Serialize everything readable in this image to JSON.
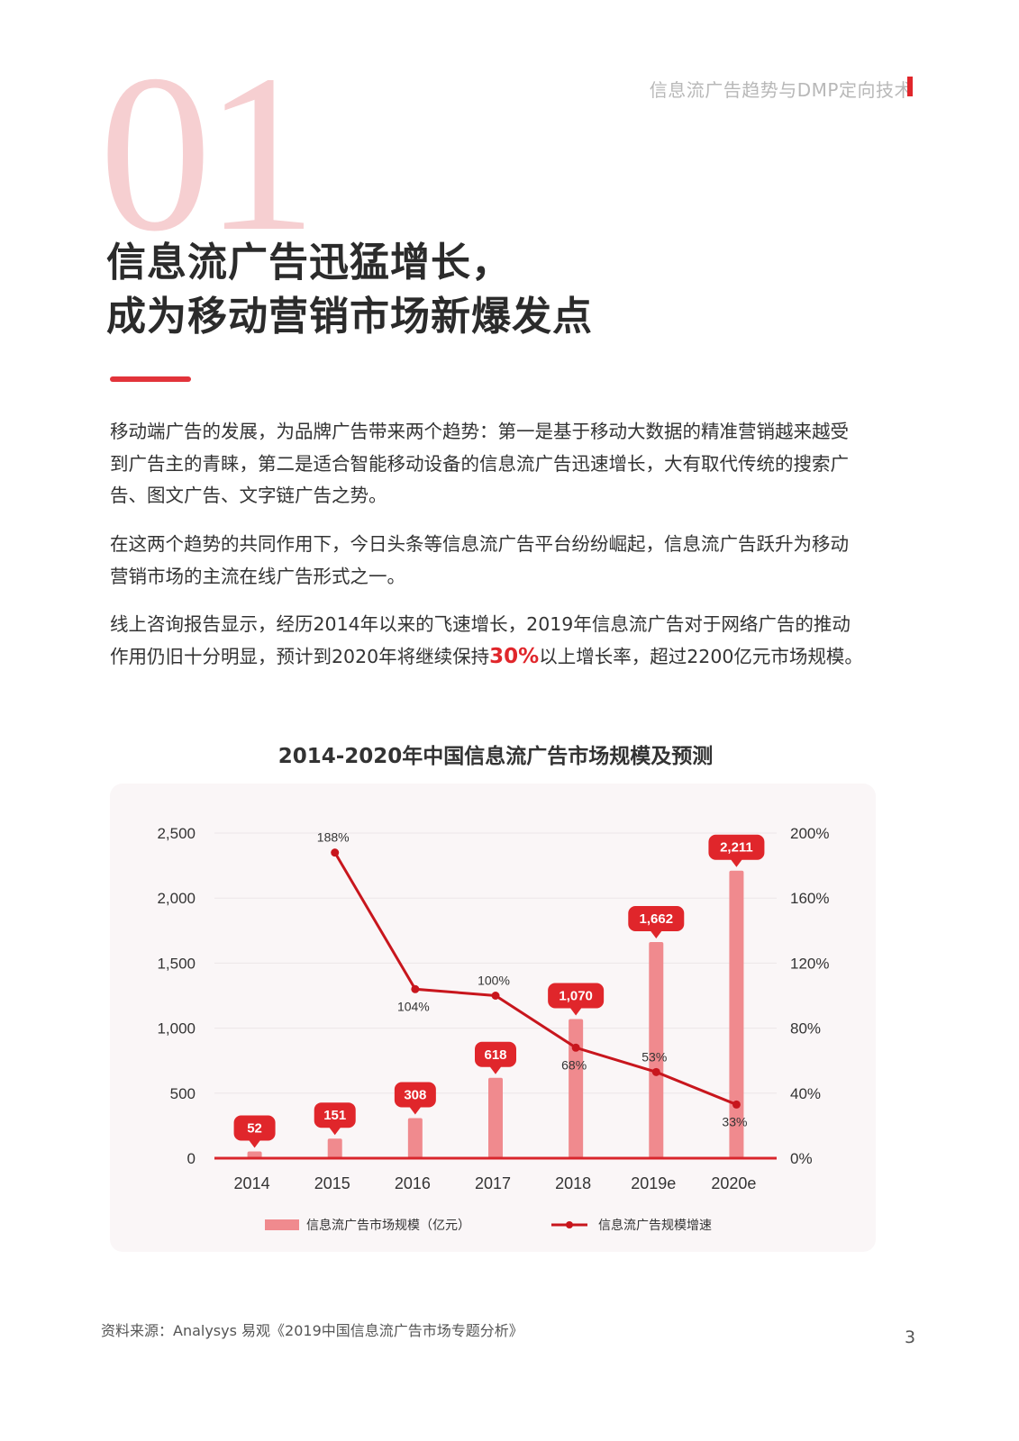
{
  "header": {
    "running_title": "信息流广告趋势与DMP定向技术"
  },
  "section": {
    "number": "01",
    "title_line1": "信息流广告迅猛增长，",
    "title_line2": "成为移动营销市场新爆发点"
  },
  "body": {
    "p1": "移动端广告的发展，为品牌广告带来两个趋势：第一是基于移动大数据的精准营销越来越受到广告主的青睐，第二是适合智能移动设备的信息流广告迅速增长，大有取代传统的搜索广告、图文广告、文字链广告之势。",
    "p2": "在这两个趋势的共同作用下，今日头条等信息流广告平台纷纷崛起，信息流广告跃升为移动营销市场的主流在线广告形式之一。",
    "p3_before": "线上咨询报告显示，经历2014年以来的飞速增长，2019年信息流广告对于网络广告的推动作用仍旧十分明显，预计到2020年将继续保持",
    "p3_highlight": "30%",
    "p3_after": "以上增长率，超过2200亿元市场规模。"
  },
  "chart_data": {
    "type": "bar+line",
    "title": "2014-2020年中国信息流广告市场规模及预测",
    "categories": [
      "2014",
      "2015",
      "2016",
      "2017",
      "2018",
      "2019e",
      "2020e"
    ],
    "series": [
      {
        "name": "信息流广告市场规模（亿元）",
        "type": "bar",
        "axis": "left",
        "values": [
          52,
          151,
          308,
          618,
          1070,
          1662,
          2211
        ],
        "labels": [
          "52",
          "151",
          "308",
          "618",
          "1,070",
          "1,662",
          "2,211"
        ],
        "color": "#f08a8e"
      },
      {
        "name": "信息流广告规模增速",
        "type": "line",
        "axis": "right",
        "values": [
          null,
          188,
          104,
          100,
          68,
          53,
          33
        ],
        "labels": [
          "",
          "188%",
          "104%",
          "100%",
          "68%",
          "53%",
          "33%"
        ],
        "color": "#c8161d"
      }
    ],
    "left_axis": {
      "ylim": [
        0,
        2500
      ],
      "ticks": [
        "0",
        "500",
        "1,000",
        "1,500",
        "2,000",
        "2,500"
      ]
    },
    "right_axis": {
      "ylim": [
        0,
        200
      ],
      "ticks": [
        "0%",
        "40%",
        "80%",
        "120%",
        "160%",
        "200%"
      ]
    },
    "grid": true,
    "legend": "bottom",
    "label_color": "#e0262b"
  },
  "footer": {
    "source": "资料来源：Analysys 易观《2019中国信息流广告市场专题分析》",
    "page": "3"
  }
}
